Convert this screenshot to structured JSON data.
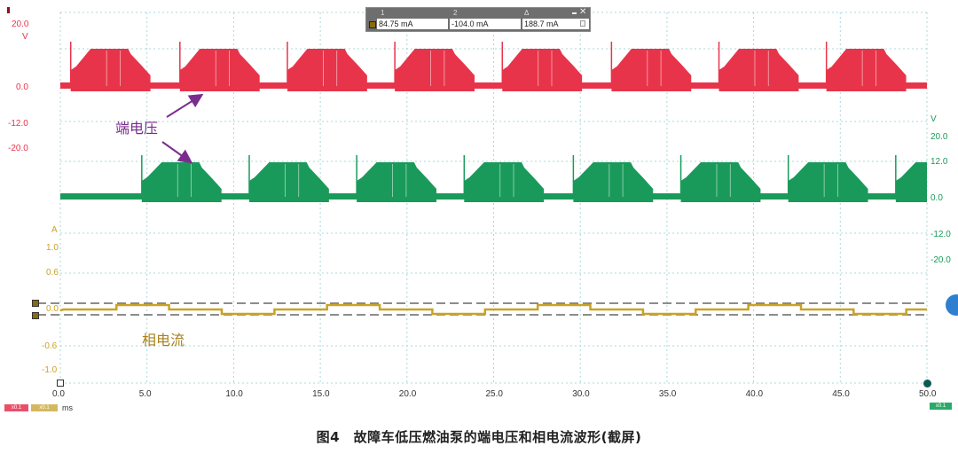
{
  "chart_data": {
    "type": "line",
    "title": "图4 故障车低压燃油泵的端电压和相电流波形(截屏)",
    "xlabel": "ms",
    "xlim": [
      0,
      50
    ],
    "x_ticks": [
      "0.0",
      "5.0",
      "10.0",
      "15.0",
      "20.0",
      "25.0",
      "30.0",
      "35.0",
      "40.0",
      "45.0",
      "50.0"
    ],
    "grid": true,
    "series": [
      {
        "name": "端电压 (Channel A, red)",
        "color": "#e8344a",
        "unit": "V",
        "y_ticks": [
          "20.0",
          "0.0",
          "-12.0",
          "-20.0"
        ],
        "description": "PWM bursts ~0 to ~12 V, period ~6.2 ms, burst duration ~4.5 ms",
        "burst_starts_ms": [
          0.6,
          6.9,
          13.1,
          19.3,
          25.5,
          31.8,
          38.0,
          44.2
        ],
        "burst_high_V": 12,
        "baseline_V": 0
      },
      {
        "name": "端电压 (Channel B, green)",
        "color": "#1a9a5a",
        "unit": "V",
        "y_ticks": [
          "20.0",
          "12.0",
          "0.0",
          "-12.0",
          "-20.0"
        ],
        "description": "Phase-shifted PWM bursts ~0 to ~12 V, offset ~4.7 ms vs red",
        "burst_starts_ms": [
          4.7,
          10.9,
          17.1,
          23.3,
          29.6,
          35.8,
          42.0,
          48.2
        ],
        "burst_high_V": 12,
        "baseline_V": 0
      },
      {
        "name": "相电流 (Channel C, gold)",
        "color": "#c9a227",
        "unit": "A",
        "y_ticks": [
          "1.0",
          "0.6",
          "0.0",
          "-0.6",
          "-1.0"
        ],
        "description": "Stepped phase current oscillating between about +0.085 A and -0.104 A",
        "cursor1_mA": 84.75,
        "cursor2_mA": -104.0
      }
    ],
    "annotations": [
      "端电压",
      "相电流"
    ]
  },
  "readout": {
    "col1_header": "1",
    "col2_header": "2",
    "delta_header": "Δ",
    "value1": "84.75 mA",
    "value2": "-104.0 mA",
    "delta": "188.7 mA",
    "minimize_icon": "minimize-icon",
    "close_icon": "close-icon",
    "lock_icon": "lock-icon"
  },
  "axes": {
    "left_red_unit": "V",
    "left_red_ticks": [
      "20.0",
      "0.0",
      "-12.0",
      "-20.0"
    ],
    "right_green_unit": "V",
    "right_green_ticks": [
      "20.0",
      "12.0",
      "0.0",
      "-12.0",
      "-20.0"
    ],
    "gold_unit": "A",
    "gold_ticks": [
      "1.0",
      "0.6",
      "0.0",
      "-0.6",
      "-1.0"
    ],
    "x_unit": "ms",
    "x_ticks": [
      "0.0",
      "5.0",
      "10.0",
      "15.0",
      "20.0",
      "25.0",
      "30.0",
      "35.0",
      "40.0",
      "45.0",
      "50.0"
    ]
  },
  "annotations": {
    "voltage": "端电压",
    "current": "相电流"
  },
  "chips": {
    "red": "x0.1",
    "gold": "x0.1",
    "green": "x0.1"
  },
  "caption": "图4　故障车低压燃油泵的端电压和相电流波形(截屏)",
  "colors": {
    "red": "#e8344a",
    "green": "#1a9a5a",
    "gold": "#c9a227",
    "purple": "#7b2d8e",
    "grid": "#a8d8d8"
  }
}
